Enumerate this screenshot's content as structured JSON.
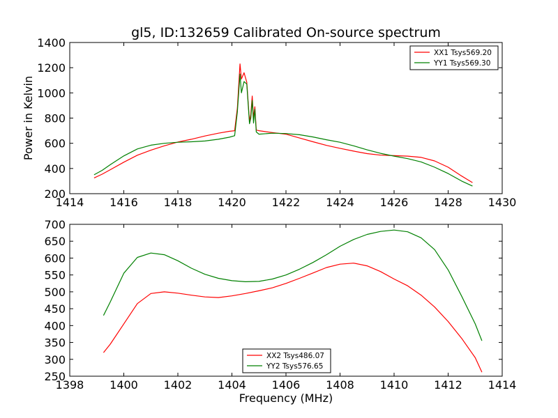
{
  "figure": {
    "title": "gl5, ID:132659 Calibrated On-source spectrum"
  },
  "chart_data": [
    {
      "type": "line",
      "title": "gl5, ID:132659 Calibrated On-source spectrum",
      "xlabel": "",
      "ylabel": "Power in Kelvin",
      "xlim": [
        1414,
        1430
      ],
      "ylim": [
        200,
        1400
      ],
      "xticks": [
        "1414",
        "1416",
        "1418",
        "1420",
        "1422",
        "1424",
        "1426",
        "1428",
        "1430"
      ],
      "yticks": [
        "200",
        "400",
        "600",
        "800",
        "1000",
        "1200",
        "1400"
      ],
      "grid": false,
      "legend_position": "upper right",
      "series": [
        {
          "name": "XX1 Tsys569.20",
          "color": "#ff0000",
          "x": [
            1414.9,
            1415.2,
            1415.5,
            1416.0,
            1416.5,
            1417.0,
            1417.5,
            1418.0,
            1418.5,
            1419.0,
            1419.5,
            1419.9,
            1420.1,
            1420.2,
            1420.3,
            1420.35,
            1420.45,
            1420.55,
            1420.65,
            1420.7,
            1420.75,
            1420.8,
            1420.85,
            1420.9,
            1421.0,
            1421.5,
            1422.0,
            1422.5,
            1423.0,
            1423.5,
            1424.0,
            1424.5,
            1425.0,
            1425.5,
            1426.0,
            1426.5,
            1427.0,
            1427.5,
            1428.0,
            1428.5,
            1428.9
          ],
          "y": [
            325,
            355,
            390,
            450,
            505,
            545,
            580,
            610,
            632,
            658,
            680,
            695,
            700,
            880,
            1230,
            1110,
            1160,
            1085,
            775,
            830,
            975,
            800,
            890,
            705,
            700,
            685,
            672,
            642,
            612,
            583,
            560,
            538,
            518,
            506,
            502,
            498,
            488,
            460,
            410,
            340,
            288
          ]
        },
        {
          "name": "YY1 Tsys569.30",
          "color": "#008000",
          "x": [
            1414.9,
            1415.2,
            1415.5,
            1416.0,
            1416.5,
            1417.0,
            1417.5,
            1418.0,
            1418.5,
            1419.0,
            1419.5,
            1419.9,
            1420.1,
            1420.2,
            1420.3,
            1420.35,
            1420.45,
            1420.55,
            1420.65,
            1420.7,
            1420.75,
            1420.8,
            1420.85,
            1420.9,
            1421.0,
            1421.5,
            1422.0,
            1422.5,
            1423.0,
            1423.5,
            1424.0,
            1424.5,
            1425.0,
            1425.5,
            1426.0,
            1426.5,
            1427.0,
            1427.5,
            1428.0,
            1428.5,
            1428.9
          ],
          "y": [
            350,
            385,
            430,
            500,
            555,
            585,
            600,
            608,
            612,
            618,
            632,
            648,
            660,
            850,
            1150,
            1000,
            1090,
            1070,
            755,
            800,
            940,
            760,
            870,
            690,
            672,
            680,
            677,
            668,
            650,
            628,
            608,
            580,
            548,
            520,
            498,
            478,
            452,
            410,
            360,
            300,
            260
          ]
        }
      ]
    },
    {
      "type": "line",
      "title": "",
      "xlabel": "Frequency (MHz)",
      "ylabel": "",
      "xlim": [
        1398,
        1414
      ],
      "ylim": [
        250,
        700
      ],
      "xticks": [
        "1398",
        "1400",
        "1402",
        "1404",
        "1406",
        "1408",
        "1410",
        "1412",
        "1414"
      ],
      "yticks": [
        "250",
        "300",
        "350",
        "400",
        "450",
        "500",
        "550",
        "600",
        "650",
        "700"
      ],
      "grid": false,
      "legend_position": "lower center",
      "series": [
        {
          "name": "XX2 Tsys486.07",
          "color": "#ff0000",
          "x": [
            1399.25,
            1399.5,
            1400.0,
            1400.5,
            1401.0,
            1401.5,
            1402.0,
            1402.5,
            1403.0,
            1403.5,
            1404.0,
            1404.5,
            1405.0,
            1405.5,
            1406.0,
            1406.5,
            1407.0,
            1407.5,
            1408.0,
            1408.5,
            1409.0,
            1409.5,
            1410.0,
            1410.5,
            1411.0,
            1411.5,
            1412.0,
            1412.5,
            1413.0,
            1413.25
          ],
          "y": [
            320,
            345,
            405,
            465,
            495,
            500,
            496,
            490,
            485,
            483,
            488,
            495,
            503,
            512,
            525,
            540,
            556,
            572,
            582,
            585,
            577,
            560,
            538,
            518,
            490,
            455,
            412,
            362,
            305,
            262
          ]
        },
        {
          "name": "YY2 Tsys576.65",
          "color": "#008000",
          "x": [
            1399.25,
            1399.5,
            1400.0,
            1400.5,
            1401.0,
            1401.5,
            1402.0,
            1402.5,
            1403.0,
            1403.5,
            1404.0,
            1404.5,
            1405.0,
            1405.5,
            1406.0,
            1406.5,
            1407.0,
            1407.5,
            1408.0,
            1408.5,
            1409.0,
            1409.5,
            1410.0,
            1410.5,
            1411.0,
            1411.5,
            1412.0,
            1412.5,
            1413.0,
            1413.25
          ],
          "y": [
            430,
            470,
            555,
            602,
            615,
            610,
            592,
            570,
            552,
            540,
            533,
            530,
            531,
            538,
            550,
            567,
            587,
            610,
            635,
            655,
            670,
            679,
            683,
            678,
            660,
            625,
            565,
            487,
            405,
            355
          ]
        }
      ]
    }
  ]
}
